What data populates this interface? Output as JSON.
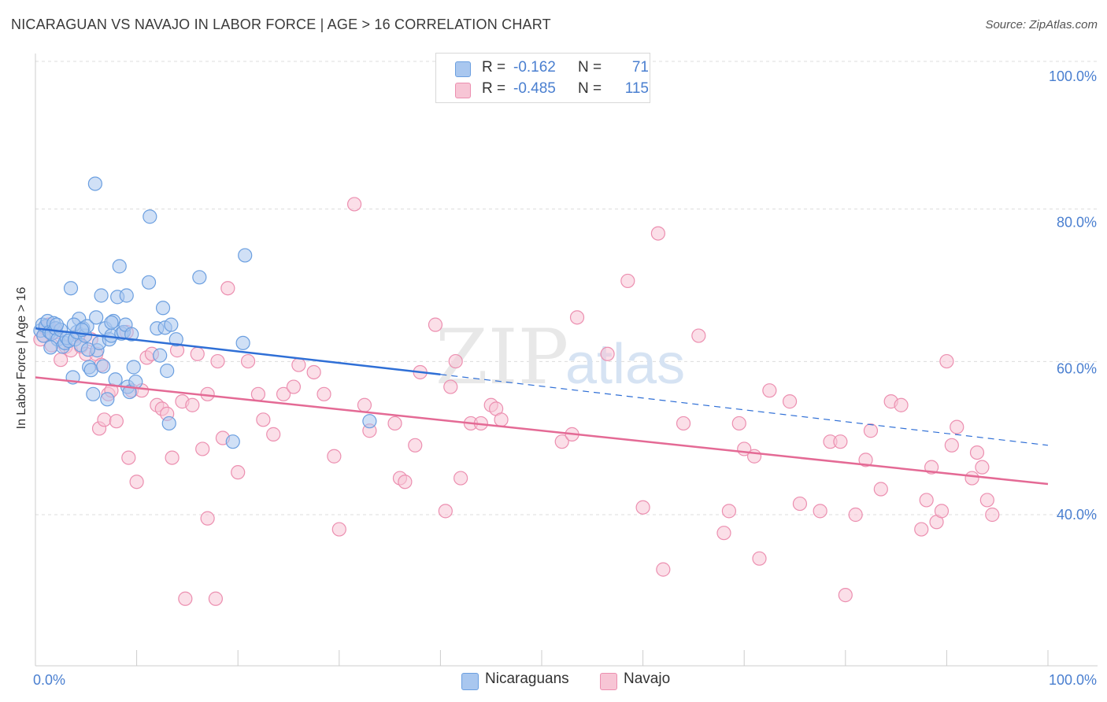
{
  "header": {
    "title": "NICARAGUAN VS NAVAJO IN LABOR FORCE | AGE > 16 CORRELATION CHART",
    "source": "Source: ZipAtlas.com"
  },
  "colors": {
    "blue_fill": "#a9c7ef",
    "blue_stroke": "#6b9fe0",
    "blue_line": "#2f6fd6",
    "pink_fill": "#f7c5d5",
    "pink_stroke": "#ec8fb0",
    "pink_line": "#e46a95",
    "tick_text": "#4a7fd0",
    "grid": "#dcdcdc"
  },
  "legend": {
    "rows": [
      {
        "r_label": "R =",
        "r_value": "-0.162",
        "n_label": "N =",
        "n_value": "71"
      },
      {
        "r_label": "R =",
        "r_value": "-0.485",
        "n_label": "N =",
        "n_value": "115"
      }
    ]
  },
  "bottom_legend": {
    "nicaraguans": "Nicaraguans",
    "navajo": "Navajo"
  },
  "watermark": {
    "zip": "ZIP",
    "atlas": "atlas"
  },
  "chart_data": {
    "type": "scatter",
    "title": "NICARAGUAN VS NAVAJO IN LABOR FORCE | AGE > 16 CORRELATION CHART",
    "xlabel": "",
    "ylabel": "In Labor Force | Age > 16",
    "xlim": [
      0,
      100
    ],
    "ylim": [
      20,
      102
    ],
    "x_tick_labels": [
      "0.0%",
      "100.0%"
    ],
    "y_ticks": [
      40,
      60,
      80,
      100
    ],
    "y_tick_labels": [
      "40.0%",
      "60.0%",
      "80.0%",
      "100.0%"
    ],
    "grid": true,
    "series": [
      {
        "name": "Nicaraguans",
        "r": -0.162,
        "n": 71,
        "trend": {
          "x0": 0,
          "y0": 65.5,
          "x1": 40,
          "y1": 59.2,
          "dashed_to_x": 100,
          "dashed_to_y": 49.5
        },
        "points": [
          [
            0.5,
            65.2
          ],
          [
            0.7,
            66.0
          ],
          [
            0.8,
            64.5
          ],
          [
            1.0,
            65.8
          ],
          [
            1.2,
            66.5
          ],
          [
            1.4,
            65.0
          ],
          [
            1.6,
            64.8
          ],
          [
            1.8,
            66.2
          ],
          [
            2.0,
            65.5
          ],
          [
            2.2,
            64.0
          ],
          [
            2.5,
            65.3
          ],
          [
            2.7,
            63.0
          ],
          [
            2.9,
            63.5
          ],
          [
            3.1,
            64.2
          ],
          [
            3.3,
            63.8
          ],
          [
            3.5,
            71.0
          ],
          [
            3.7,
            58.8
          ],
          [
            3.9,
            64.0
          ],
          [
            4.1,
            65.0
          ],
          [
            4.3,
            66.8
          ],
          [
            4.5,
            63.2
          ],
          [
            4.7,
            65.5
          ],
          [
            4.9,
            64.5
          ],
          [
            5.1,
            65.8
          ],
          [
            5.3,
            60.2
          ],
          [
            5.5,
            59.8
          ],
          [
            5.7,
            56.5
          ],
          [
            5.9,
            85.3
          ],
          [
            6.1,
            62.5
          ],
          [
            6.3,
            63.5
          ],
          [
            6.5,
            70.0
          ],
          [
            6.7,
            60.3
          ],
          [
            6.9,
            65.5
          ],
          [
            7.1,
            55.8
          ],
          [
            7.3,
            64.0
          ],
          [
            7.5,
            64.5
          ],
          [
            7.7,
            66.5
          ],
          [
            7.9,
            58.5
          ],
          [
            8.1,
            69.8
          ],
          [
            8.3,
            74.0
          ],
          [
            8.5,
            64.8
          ],
          [
            8.7,
            65.0
          ],
          [
            8.9,
            66.0
          ],
          [
            9.1,
            57.5
          ],
          [
            9.3,
            56.8
          ],
          [
            9.5,
            64.7
          ],
          [
            9.7,
            60.2
          ],
          [
            9.9,
            58.2
          ],
          [
            11.2,
            71.8
          ],
          [
            11.3,
            80.8
          ],
          [
            12.0,
            65.5
          ],
          [
            12.3,
            61.8
          ],
          [
            12.6,
            68.3
          ],
          [
            12.8,
            65.6
          ],
          [
            13.0,
            59.7
          ],
          [
            13.2,
            52.5
          ],
          [
            13.4,
            66.0
          ],
          [
            13.9,
            64.0
          ],
          [
            16.2,
            72.5
          ],
          [
            19.5,
            50.0
          ],
          [
            20.5,
            63.5
          ],
          [
            20.7,
            75.5
          ],
          [
            33.0,
            52.8
          ],
          [
            5.2,
            62.6
          ],
          [
            3.8,
            66.0
          ],
          [
            2.1,
            66.0
          ],
          [
            1.5,
            62.9
          ],
          [
            6.0,
            67.0
          ],
          [
            9.0,
            70.0
          ],
          [
            4.6,
            65.3
          ],
          [
            7.5,
            66.3
          ]
        ]
      },
      {
        "name": "Navajo",
        "r": -0.485,
        "n": 115,
        "trend": {
          "x0": 0,
          "y0": 58.8,
          "x1": 100,
          "y1": 44.2
        },
        "points": [
          [
            0.5,
            64.0
          ],
          [
            0.8,
            64.5
          ],
          [
            1.0,
            65.5
          ],
          [
            1.3,
            66.0
          ],
          [
            1.6,
            63.2
          ],
          [
            2.0,
            65.0
          ],
          [
            2.5,
            61.2
          ],
          [
            3.0,
            63.0
          ],
          [
            3.5,
            62.5
          ],
          [
            4.2,
            64.5
          ],
          [
            4.5,
            63.0
          ],
          [
            5.0,
            62.0
          ],
          [
            5.5,
            64.0
          ],
          [
            6.0,
            62.0
          ],
          [
            6.5,
            60.5
          ],
          [
            6.3,
            51.8
          ],
          [
            6.8,
            53.0
          ],
          [
            7.2,
            56.5
          ],
          [
            7.5,
            57.0
          ],
          [
            8.0,
            52.8
          ],
          [
            9.0,
            65.0
          ],
          [
            9.5,
            57.0
          ],
          [
            10.5,
            57.0
          ],
          [
            11.0,
            61.5
          ],
          [
            11.5,
            62.0
          ],
          [
            12.0,
            55.0
          ],
          [
            12.5,
            54.5
          ],
          [
            13.0,
            53.8
          ],
          [
            13.5,
            47.8
          ],
          [
            14.0,
            62.5
          ],
          [
            14.5,
            55.5
          ],
          [
            15.5,
            55.0
          ],
          [
            16.0,
            62.0
          ],
          [
            17.0,
            56.5
          ],
          [
            18.0,
            61.0
          ],
          [
            19.0,
            71.0
          ],
          [
            20.0,
            45.8
          ],
          [
            21.0,
            61.0
          ],
          [
            22.0,
            56.5
          ],
          [
            22.5,
            53.0
          ],
          [
            23.5,
            51.0
          ],
          [
            24.5,
            56.5
          ],
          [
            25.5,
            57.5
          ],
          [
            26.0,
            60.5
          ],
          [
            27.5,
            59.5
          ],
          [
            28.5,
            56.5
          ],
          [
            29.5,
            48.0
          ],
          [
            30.0,
            38.0
          ],
          [
            31.5,
            82.5
          ],
          [
            32.5,
            55.0
          ],
          [
            33.0,
            51.5
          ],
          [
            35.5,
            52.5
          ],
          [
            36.0,
            45.0
          ],
          [
            36.5,
            44.5
          ],
          [
            37.5,
            49.5
          ],
          [
            38.0,
            59.5
          ],
          [
            39.5,
            66.0
          ],
          [
            40.5,
            40.5
          ],
          [
            41.0,
            57.5
          ],
          [
            41.5,
            61.0
          ],
          [
            42.0,
            45.0
          ],
          [
            43.0,
            52.5
          ],
          [
            44.0,
            52.5
          ],
          [
            45.0,
            55.0
          ],
          [
            45.5,
            54.5
          ],
          [
            46.0,
            53.0
          ],
          [
            16.5,
            49.0
          ],
          [
            18.5,
            50.5
          ],
          [
            10.0,
            44.5
          ],
          [
            9.2,
            47.8
          ],
          [
            14.8,
            28.5
          ],
          [
            17.8,
            28.5
          ],
          [
            17.0,
            39.5
          ],
          [
            52.0,
            50.0
          ],
          [
            53.0,
            51.0
          ],
          [
            53.5,
            67.0
          ],
          [
            56.5,
            62.0
          ],
          [
            58.5,
            72.0
          ],
          [
            60.0,
            41.0
          ],
          [
            61.5,
            78.5
          ],
          [
            62.0,
            32.5
          ],
          [
            64.0,
            52.5
          ],
          [
            65.5,
            64.5
          ],
          [
            68.0,
            37.5
          ],
          [
            68.5,
            40.5
          ],
          [
            69.5,
            52.5
          ],
          [
            70.0,
            49.0
          ],
          [
            71.0,
            48.0
          ],
          [
            71.5,
            34.0
          ],
          [
            72.5,
            57.0
          ],
          [
            74.5,
            55.5
          ],
          [
            75.5,
            41.5
          ],
          [
            77.5,
            40.5
          ],
          [
            78.5,
            50.0
          ],
          [
            79.5,
            50.0
          ],
          [
            80.0,
            29.0
          ],
          [
            81.0,
            40.0
          ],
          [
            82.0,
            47.5
          ],
          [
            82.5,
            51.5
          ],
          [
            83.5,
            43.5
          ],
          [
            84.5,
            55.5
          ],
          [
            85.5,
            55.0
          ],
          [
            87.5,
            38.0
          ],
          [
            88.0,
            42.0
          ],
          [
            88.5,
            46.5
          ],
          [
            89.0,
            39.0
          ],
          [
            89.5,
            40.5
          ],
          [
            90.0,
            61.0
          ],
          [
            90.5,
            49.5
          ],
          [
            91.0,
            52.0
          ],
          [
            92.5,
            45.0
          ],
          [
            93.0,
            48.5
          ],
          [
            93.5,
            46.5
          ],
          [
            94.0,
            42.0
          ],
          [
            94.5,
            40.0
          ]
        ]
      }
    ]
  }
}
